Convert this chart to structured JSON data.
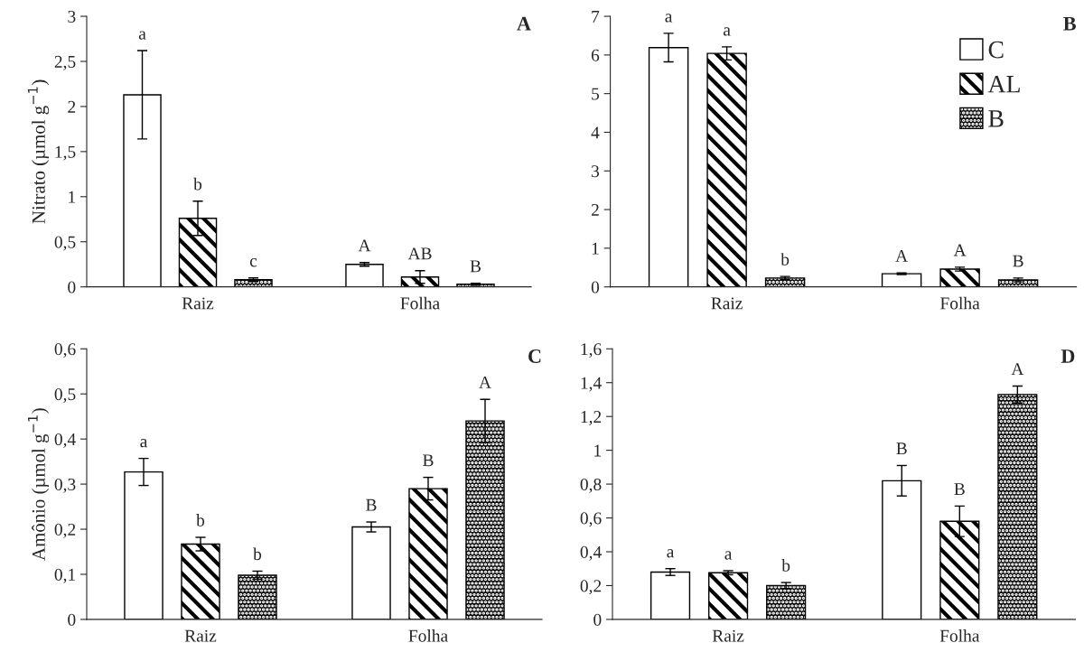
{
  "chart_data": [
    {
      "type": "bar",
      "title": "A",
      "ylabel": "Nitrato (µmol g$^{−1}$)",
      "categories": [
        "Raiz",
        "Folha"
      ],
      "ylim": [
        0,
        3
      ],
      "yticks": [
        0,
        {
          "value": 0.5,
          "label": "0,5"
        },
        1,
        {
          "value": 1.5,
          "label": "1,5"
        },
        2,
        {
          "value": 2.5,
          "label": "2,5"
        },
        3
      ],
      "grid": false,
      "series": [
        {
          "color": "#ffffff",
          "values": [
            2.13,
            0.25
          ],
          "errors": [
            0.49,
            0.02
          ],
          "value_labels": [
            "a",
            "A"
          ]
        },
        {
          "color": "#000000",
          "values": [
            0.76,
            0.11
          ],
          "errors": [
            0.19,
            0.07
          ],
          "value_labels": [
            "b",
            "AB"
          ]
        },
        {
          "color": "#000000",
          "values": [
            0.08,
            0.03
          ],
          "errors": [
            0.02,
            0.01
          ],
          "value_labels": [
            "c",
            "B"
          ]
        }
      ]
    },
    {
      "type": "bar",
      "title": "B",
      "categories": [
        "Raiz",
        "Folha"
      ],
      "ylim": [
        0,
        7
      ],
      "yticks": [
        0,
        1,
        2,
        3,
        4,
        5,
        6,
        7
      ],
      "grid": false,
      "legend": "top right",
      "series": [
        {
          "name": "C",
          "color": "#ffffff",
          "values": [
            6.19,
            0.34
          ],
          "errors": [
            0.37,
            0.02
          ],
          "value_labels": [
            "a",
            "A"
          ]
        },
        {
          "name": "AL",
          "color": "#000000",
          "values": [
            6.04,
            0.46
          ],
          "errors": [
            0.17,
            0.05
          ],
          "value_labels": [
            "a",
            "A"
          ]
        },
        {
          "name": "B",
          "color": "#000000",
          "values": [
            0.23,
            0.18
          ],
          "errors": [
            0.04,
            0.05
          ],
          "value_labels": [
            "b",
            "B"
          ]
        }
      ]
    },
    {
      "type": "bar",
      "title": "C",
      "ylabel": "Amônio (µmol g$^{−1}$)",
      "categories": [
        "Raiz",
        "Folha"
      ],
      "ylim": [
        0,
        0.6
      ],
      "yticks": [
        0,
        {
          "value": 0.1,
          "label": "0,1"
        },
        {
          "value": 0.2,
          "label": "0,2"
        },
        {
          "value": 0.3,
          "label": "0,3"
        },
        {
          "value": 0.4,
          "label": "0,4"
        },
        {
          "value": 0.5,
          "label": "0,5"
        },
        {
          "value": 0.6,
          "label": "0,6"
        }
      ],
      "grid": false,
      "series": [
        {
          "color": "#ffffff",
          "values": [
            0.327,
            0.205
          ],
          "errors": [
            0.03,
            0.011
          ],
          "value_labels": [
            "a",
            "B"
          ]
        },
        {
          "color": "#000000",
          "values": [
            0.167,
            0.29
          ],
          "errors": [
            0.015,
            0.025
          ],
          "value_labels": [
            "b",
            "B"
          ]
        },
        {
          "color": "#000000",
          "values": [
            0.098,
            0.44
          ],
          "errors": [
            0.009,
            0.048
          ],
          "value_labels": [
            "b",
            "A"
          ]
        }
      ]
    },
    {
      "type": "bar",
      "title": "D",
      "categories": [
        "Raiz",
        "Folha"
      ],
      "ylim": [
        0,
        1.6
      ],
      "yticks": [
        0,
        {
          "value": 0.2,
          "label": "0,2"
        },
        {
          "value": 0.4,
          "label": "0,4"
        },
        {
          "value": 0.6,
          "label": "0,6"
        },
        {
          "value": 0.8,
          "label": "0,8"
        },
        1,
        {
          "value": 1.2,
          "label": "1,2"
        },
        {
          "value": 1.4,
          "label": "1,4"
        },
        {
          "value": 1.6,
          "label": "1,6"
        }
      ],
      "grid": false,
      "series": [
        {
          "color": "#ffffff",
          "values": [
            0.28,
            0.82
          ],
          "errors": [
            0.02,
            0.09
          ],
          "value_labels": [
            "a",
            "B"
          ]
        },
        {
          "color": "#000000",
          "values": [
            0.276,
            0.58
          ],
          "errors": [
            0.012,
            0.09
          ],
          "value_labels": [
            "a",
            "B"
          ]
        },
        {
          "color": "#000000",
          "values": [
            0.2,
            1.33
          ],
          "errors": [
            0.018,
            0.05
          ],
          "value_labels": [
            "b",
            "A"
          ]
        }
      ]
    }
  ]
}
